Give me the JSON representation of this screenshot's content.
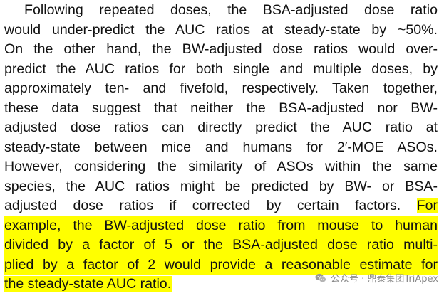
{
  "paragraph": {
    "lines": [
      "Following repeated doses, the BSA-adjusted dose ratio",
      "would under-predict the AUC ratios at steady-state by ~50%.",
      "On the other hand, the BW-adjusted dose ratios would over-",
      "predict the AUC ratios for both single and multiple doses, by",
      "approximately ten- and fivefold, respectively. Taken together,",
      "these data suggest that neither the BSA-adjusted nor BW-",
      "adjusted dose ratios can directly predict the AUC ratio at",
      "steady-state between mice and humans for 2′-MOE ASOs.",
      "However, considering the similarity of ASOs within the same",
      "species, the AUC ratios might be predicted by BW- or BSA-",
      "adjusted dose ratios if corrected by certain factors."
    ],
    "highlight_start": "For",
    "highlighted_lines": [
      "example, the BW-adjusted dose ratio from mouse to human",
      "divided by a factor of 5 or the BSA-adjusted dose ratio multi-",
      "plied by a factor of 2 would provide a reasonable estimate for",
      "the steady-state AUC ratio."
    ],
    "highlight_color": "#ffff00"
  },
  "watermark": {
    "text": "公众号 · 鼎泰集团TriApex",
    "icon": "wechat-icon",
    "color": "#8a8a8a"
  }
}
